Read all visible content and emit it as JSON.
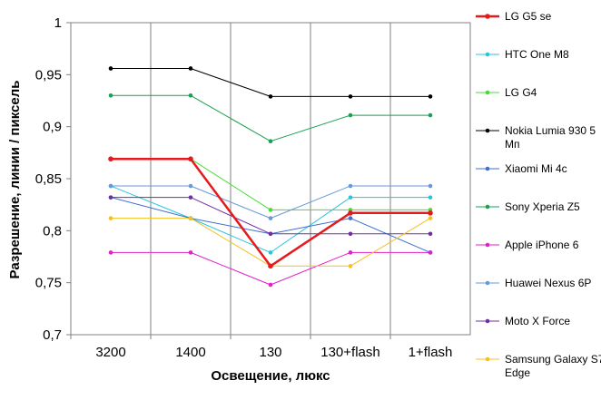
{
  "chart_data": {
    "type": "line",
    "xlabel": "Освещение,  люкс",
    "ylabel": "Разрешение,  линии / пиксель",
    "categories": [
      "3200",
      "1400",
      "130",
      "130+flash",
      "1+flash"
    ],
    "ylim": [
      0.7,
      1.0
    ],
    "yticks": [
      "0,7",
      "0,75",
      "0,8",
      "0,85",
      "0,9",
      "0,95",
      "1"
    ],
    "grid": "vertical",
    "legend": "right",
    "series": [
      {
        "name": "LG G5 se",
        "color": "#e41a1c",
        "bold": true,
        "values": [
          0.869,
          0.869,
          0.766,
          0.817,
          0.817
        ]
      },
      {
        "name": "HTC One M8",
        "color": "#27c4dc",
        "values": [
          0.843,
          0.812,
          0.779,
          0.832,
          0.832
        ]
      },
      {
        "name": "LG G4",
        "color": "#44dd33",
        "values": [
          0.869,
          0.869,
          0.82,
          0.82,
          0.82
        ]
      },
      {
        "name": "Nokia Lumia 930 5 Мп",
        "color": "#000000",
        "values": [
          0.956,
          0.956,
          0.929,
          0.929,
          0.929
        ]
      },
      {
        "name": "Xiaomi Mi 4c",
        "color": "#3b6fd4",
        "values": [
          0.832,
          0.812,
          0.797,
          0.812,
          0.779
        ]
      },
      {
        "name": "Sony Xperia Z5",
        "color": "#1aa050",
        "values": [
          0.93,
          0.93,
          0.886,
          0.911,
          0.911
        ]
      },
      {
        "name": "Apple iPhone 6",
        "color": "#e020c8",
        "values": [
          0.779,
          0.779,
          0.748,
          0.779,
          0.779
        ]
      },
      {
        "name": "Huawei Nexus 6P",
        "color": "#6a98d8",
        "values": [
          0.843,
          0.843,
          0.812,
          0.843,
          0.843
        ]
      },
      {
        "name": "Moto X Force",
        "color": "#7030a0",
        "values": [
          0.832,
          0.832,
          0.797,
          0.797,
          0.797
        ]
      },
      {
        "name": "Samsung Galaxy S7 Edge",
        "color": "#f5c020",
        "values": [
          0.812,
          0.812,
          0.766,
          0.766,
          0.812
        ]
      }
    ]
  }
}
